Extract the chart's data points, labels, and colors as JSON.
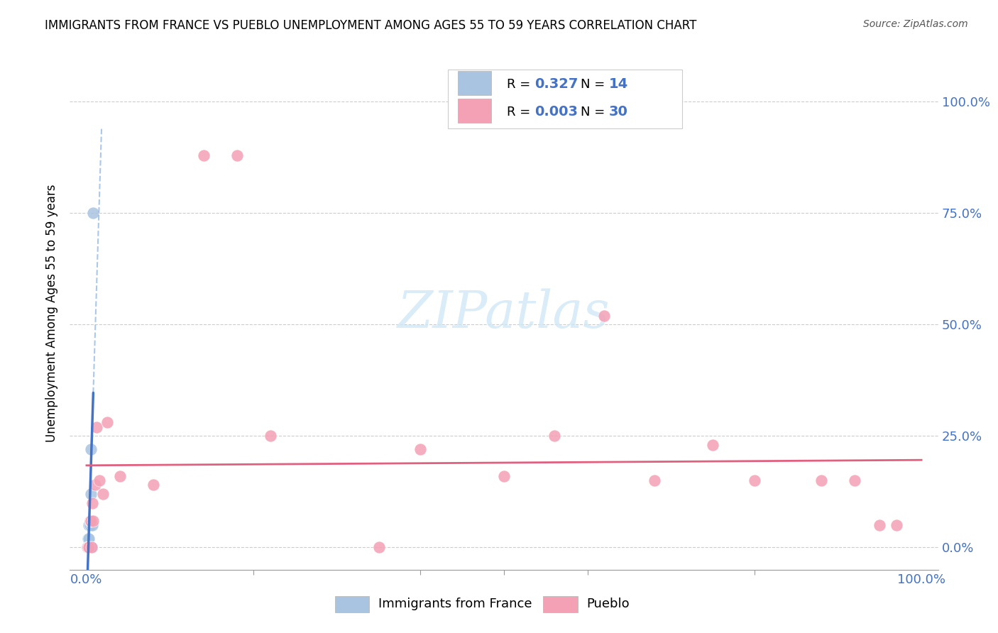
{
  "title": "IMMIGRANTS FROM FRANCE VS PUEBLO UNEMPLOYMENT AMONG AGES 55 TO 59 YEARS CORRELATION CHART",
  "source": "Source: ZipAtlas.com",
  "ylabel": "Unemployment Among Ages 55 to 59 years",
  "legend_label1": "Immigrants from France",
  "legend_label2": "Pueblo",
  "R1": "0.327",
  "N1": "14",
  "R2": "0.003",
  "N2": "30",
  "color_france": "#a8c4e0",
  "color_pueblo": "#f4a0b5",
  "trendline_france_solid": "#4472c4",
  "trendline_france_dash": "#88b0e0",
  "trendline_pueblo_color": "#e06080",
  "watermark_color": "#d0e8f5",
  "france_x": [
    0.001,
    0.001,
    0.002,
    0.002,
    0.002,
    0.003,
    0.003,
    0.003,
    0.004,
    0.005,
    0.005,
    0.006,
    0.007,
    0.008
  ],
  "france_y": [
    0.0,
    0.0,
    0.0,
    0.0,
    0.02,
    0.0,
    0.02,
    0.05,
    0.05,
    0.12,
    0.22,
    0.0,
    0.05,
    0.75
  ],
  "pueblo_x": [
    0.001,
    0.002,
    0.003,
    0.004,
    0.005,
    0.006,
    0.007,
    0.008,
    0.01,
    0.012,
    0.015,
    0.02,
    0.025,
    0.04,
    0.08,
    0.14,
    0.18,
    0.22,
    0.35,
    0.4,
    0.5,
    0.56,
    0.62,
    0.68,
    0.75,
    0.8,
    0.88,
    0.92,
    0.95,
    0.97
  ],
  "pueblo_y": [
    0.0,
    0.0,
    0.0,
    0.06,
    0.06,
    0.0,
    0.1,
    0.06,
    0.14,
    0.27,
    0.15,
    0.12,
    0.28,
    0.16,
    0.14,
    0.88,
    0.88,
    0.25,
    0.0,
    0.22,
    0.16,
    0.25,
    0.52,
    0.15,
    0.23,
    0.15,
    0.15,
    0.15,
    0.05,
    0.05
  ],
  "france_dot_size": 150,
  "pueblo_dot_size": 150,
  "xlim": [
    -0.02,
    1.02
  ],
  "ylim": [
    -0.05,
    1.1
  ],
  "yticks": [
    0.0,
    0.25,
    0.5,
    0.75,
    1.0
  ],
  "xticks": [
    0.0,
    1.0
  ]
}
